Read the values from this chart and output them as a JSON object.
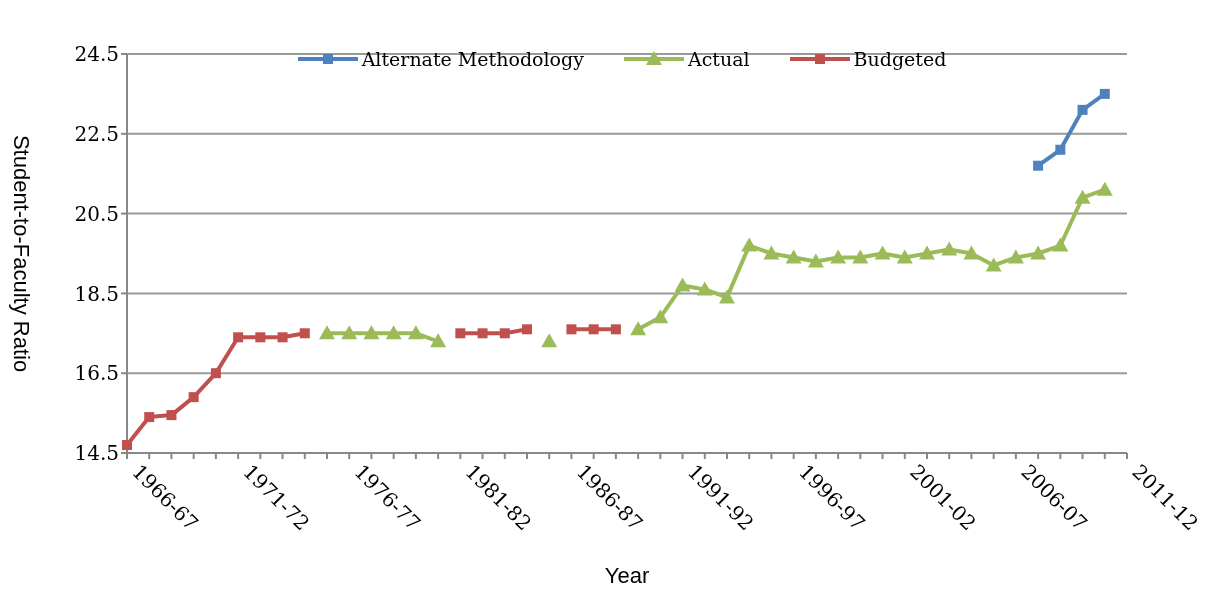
{
  "chart_data": {
    "type": "line",
    "xlabel": "Year",
    "ylabel": "Student-to-Faculty Ratio",
    "categories": [
      "1966-67",
      null,
      null,
      null,
      null,
      "1971-72",
      null,
      null,
      null,
      null,
      "1976-77",
      null,
      null,
      null,
      null,
      "1981-82",
      null,
      null,
      null,
      null,
      "1986-87",
      null,
      null,
      null,
      null,
      "1991-92",
      null,
      null,
      null,
      null,
      "1996-97",
      null,
      null,
      null,
      null,
      "2001-02",
      null,
      null,
      null,
      null,
      "2006-07",
      null,
      null,
      null,
      null,
      "2011-12"
    ],
    "series": [
      {
        "name": "Alternate Methodology",
        "color": "#4f81bd",
        "marker": "square",
        "values": [
          null,
          null,
          null,
          null,
          null,
          null,
          null,
          null,
          null,
          null,
          null,
          null,
          null,
          null,
          null,
          null,
          null,
          null,
          null,
          null,
          null,
          null,
          null,
          null,
          null,
          null,
          null,
          null,
          null,
          null,
          null,
          null,
          null,
          null,
          null,
          null,
          null,
          null,
          null,
          null,
          null,
          21.7,
          22.1,
          23.1,
          23.5,
          null
        ]
      },
      {
        "name": "Actual",
        "color": "#9bbb59",
        "marker": "triangle",
        "values": [
          null,
          null,
          null,
          null,
          null,
          null,
          null,
          null,
          null,
          17.5,
          17.5,
          17.5,
          17.5,
          17.5,
          17.3,
          null,
          null,
          null,
          null,
          17.3,
          null,
          null,
          null,
          17.6,
          17.9,
          18.7,
          18.6,
          18.4,
          19.7,
          19.5,
          19.4,
          19.3,
          19.4,
          19.4,
          19.5,
          19.4,
          19.5,
          19.6,
          19.5,
          19.2,
          19.4,
          19.5,
          19.7,
          20.9,
          21.1,
          null
        ]
      },
      {
        "name": "Budgeted",
        "color": "#c0504d",
        "marker": "square",
        "values": [
          14.7,
          15.4,
          15.45,
          15.9,
          16.5,
          17.4,
          17.4,
          17.4,
          17.5,
          null,
          null,
          null,
          null,
          null,
          null,
          17.5,
          17.5,
          17.5,
          17.6,
          null,
          17.6,
          17.6,
          17.6,
          null,
          null,
          null,
          null,
          null,
          null,
          null,
          null,
          null,
          null,
          null,
          null,
          null,
          null,
          null,
          null,
          null,
          null,
          null,
          null,
          null,
          null,
          null
        ]
      }
    ],
    "ylim": [
      14.5,
      24.5
    ],
    "yticks": [
      14.5,
      16.5,
      18.5,
      20.5,
      22.5,
      24.5
    ],
    "grid": "y",
    "legend": "top",
    "line_style": "solid"
  }
}
